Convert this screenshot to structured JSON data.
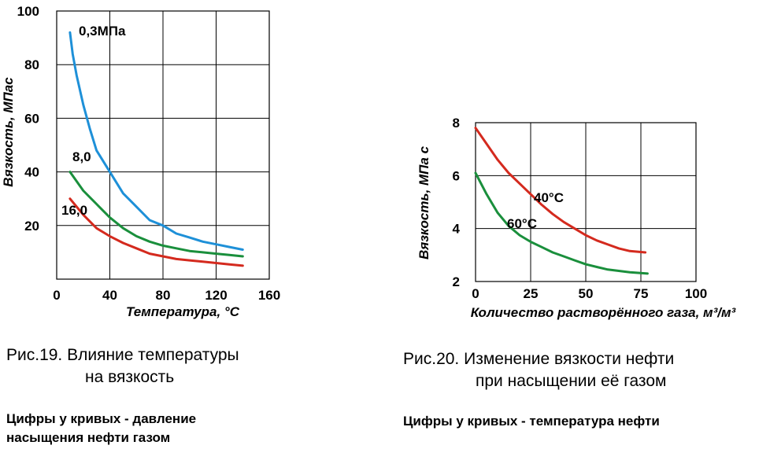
{
  "chart_data": [
    {
      "type": "line",
      "title": "",
      "xlabel": "Температура, °С",
      "ylabel": "Вязкость, МПас",
      "xlim": [
        0,
        160
      ],
      "ylim": [
        0,
        100
      ],
      "xticks": [
        "0",
        "40",
        "80",
        "120",
        "160"
      ],
      "yticks": [
        "20",
        "40",
        "60",
        "80",
        "100"
      ],
      "grid": true,
      "series": [
        {
          "name": "0,3МПа",
          "color": "#1e90d8",
          "x": [
            10,
            12,
            15,
            20,
            25,
            30,
            40,
            50,
            60,
            70,
            80,
            90,
            100,
            110,
            120,
            130,
            140
          ],
          "y": [
            92,
            84,
            76,
            65,
            56,
            48,
            40,
            32,
            27,
            22,
            20,
            17,
            15.5,
            14,
            13,
            12,
            11
          ]
        },
        {
          "name": "8,0",
          "color": "#1a8f3c",
          "x": [
            10,
            20,
            30,
            40,
            50,
            60,
            70,
            80,
            90,
            100,
            110,
            120,
            130,
            140
          ],
          "y": [
            40,
            33,
            28,
            23,
            19,
            16,
            14,
            12.5,
            11.5,
            10.5,
            10,
            9.5,
            9,
            8.5
          ]
        },
        {
          "name": "16,0",
          "color": "#d42a1e",
          "x": [
            10,
            20,
            30,
            40,
            50,
            60,
            70,
            80,
            90,
            100,
            110,
            120,
            130,
            140
          ],
          "y": [
            30,
            24,
            19,
            16,
            13.5,
            11.5,
            9.5,
            8.5,
            7.5,
            7,
            6.5,
            6,
            5.5,
            5
          ]
        }
      ]
    },
    {
      "type": "line",
      "title": "",
      "xlabel": "Количество растворённого газа, м³/м³",
      "ylabel": "Вязкость, МПа с",
      "xlim": [
        0,
        100
      ],
      "ylim": [
        2,
        8
      ],
      "xticks": [
        "0",
        "25",
        "50",
        "75",
        "100"
      ],
      "yticks": [
        "2",
        "4",
        "6",
        "8"
      ],
      "grid": true,
      "series": [
        {
          "name": "40°С",
          "color": "#d42a1e",
          "x": [
            0,
            5,
            10,
            15,
            20,
            25,
            30,
            35,
            40,
            45,
            50,
            55,
            60,
            65,
            70,
            77
          ],
          "y": [
            7.8,
            7.2,
            6.6,
            6.1,
            5.7,
            5.3,
            4.9,
            4.55,
            4.25,
            4.0,
            3.75,
            3.55,
            3.4,
            3.25,
            3.15,
            3.1
          ]
        },
        {
          "name": "60°С",
          "color": "#1a8f3c",
          "x": [
            0,
            5,
            10,
            15,
            20,
            25,
            30,
            35,
            40,
            45,
            50,
            55,
            60,
            65,
            70,
            78
          ],
          "y": [
            6.1,
            5.3,
            4.6,
            4.1,
            3.75,
            3.5,
            3.3,
            3.1,
            2.95,
            2.8,
            2.65,
            2.55,
            2.45,
            2.4,
            2.35,
            2.3
          ]
        }
      ]
    }
  ],
  "captions": {
    "fig19_line1": "Рис.19. Влияние температуры",
    "fig19_line2": "на вязкость",
    "fig19_note1": "Цифры у кривых - давление",
    "fig19_note2": "насыщения нефти газом",
    "fig20_line1": "Рис.20. Изменение вязкости нефти",
    "fig20_line2": "при насыщении её газом",
    "fig20_note1": "Цифры у кривых - температура нефти"
  }
}
